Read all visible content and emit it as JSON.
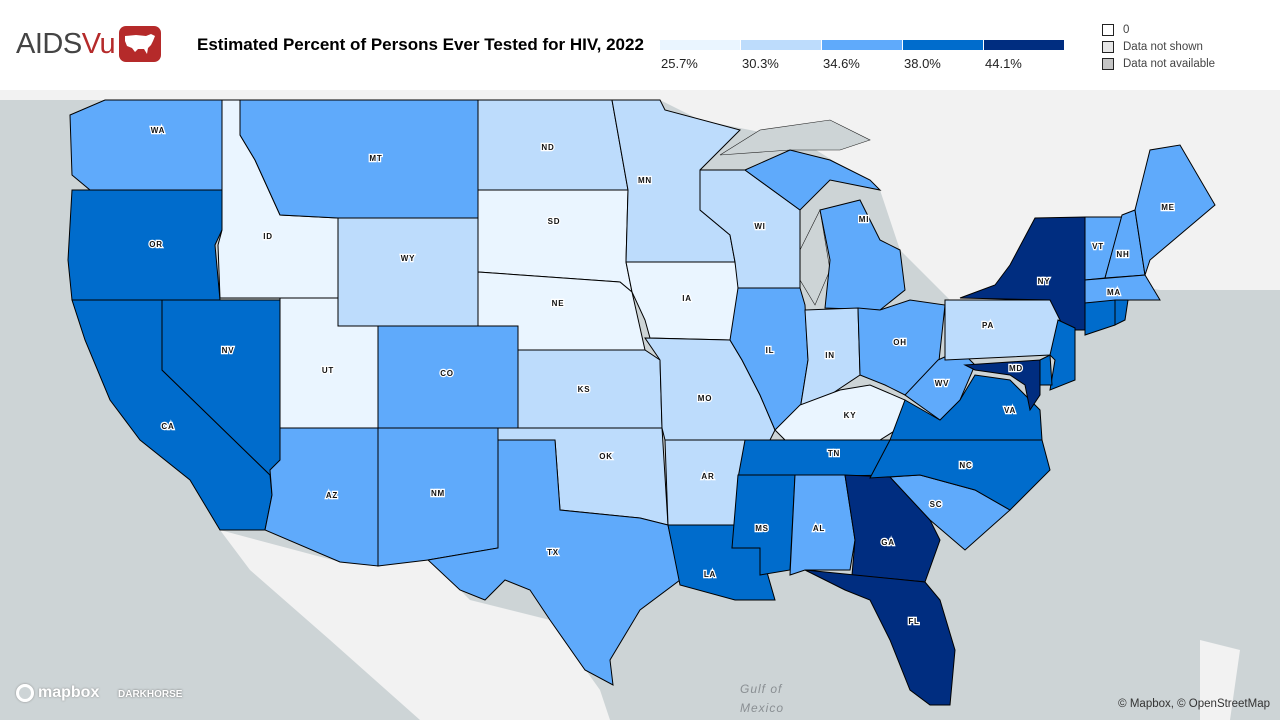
{
  "header": {
    "logo": {
      "text_main": "AIDS",
      "text_accent": "Vu"
    },
    "title": "Estimated Percent of Persons Ever Tested for HIV, 2022"
  },
  "legend": {
    "scale": [
      {
        "label": "25.7%",
        "color": "#eaf5ff"
      },
      {
        "label": "30.3%",
        "color": "#bddcfc"
      },
      {
        "label": "34.6%",
        "color": "#5faafb"
      },
      {
        "label": "38.0%",
        "color": "#006ccc"
      },
      {
        "label": "44.1%",
        "color": "#002d80"
      }
    ],
    "keys": [
      {
        "label": "0",
        "color": "#ffffff"
      },
      {
        "label": "Data not shown",
        "color": "#e6e6e6"
      },
      {
        "label": "Data not available",
        "color": "#c4c4c4"
      }
    ]
  },
  "map": {
    "states": [
      {
        "abbr": "WA",
        "bin": 2
      },
      {
        "abbr": "OR",
        "bin": 3
      },
      {
        "abbr": "CA",
        "bin": 3
      },
      {
        "abbr": "NV",
        "bin": 3
      },
      {
        "abbr": "ID",
        "bin": 0
      },
      {
        "abbr": "MT",
        "bin": 2
      },
      {
        "abbr": "WY",
        "bin": 1
      },
      {
        "abbr": "UT",
        "bin": 0
      },
      {
        "abbr": "CO",
        "bin": 2
      },
      {
        "abbr": "AZ",
        "bin": 2
      },
      {
        "abbr": "NM",
        "bin": 2
      },
      {
        "abbr": "ND",
        "bin": 1
      },
      {
        "abbr": "SD",
        "bin": 0
      },
      {
        "abbr": "NE",
        "bin": 0
      },
      {
        "abbr": "KS",
        "bin": 1
      },
      {
        "abbr": "OK",
        "bin": 1
      },
      {
        "abbr": "TX",
        "bin": 2
      },
      {
        "abbr": "MN",
        "bin": 1
      },
      {
        "abbr": "IA",
        "bin": 0
      },
      {
        "abbr": "MO",
        "bin": 1
      },
      {
        "abbr": "AR",
        "bin": 1
      },
      {
        "abbr": "LA",
        "bin": 3
      },
      {
        "abbr": "WI",
        "bin": 1
      },
      {
        "abbr": "IL",
        "bin": 2
      },
      {
        "abbr": "MI",
        "bin": 2
      },
      {
        "abbr": "IN",
        "bin": 1
      },
      {
        "abbr": "OH",
        "bin": 2
      },
      {
        "abbr": "KY",
        "bin": 0
      },
      {
        "abbr": "TN",
        "bin": 3
      },
      {
        "abbr": "MS",
        "bin": 3
      },
      {
        "abbr": "AL",
        "bin": 2
      },
      {
        "abbr": "GA",
        "bin": 4
      },
      {
        "abbr": "FL",
        "bin": 4
      },
      {
        "abbr": "SC",
        "bin": 2
      },
      {
        "abbr": "NC",
        "bin": 3
      },
      {
        "abbr": "VA",
        "bin": 3
      },
      {
        "abbr": "WV",
        "bin": 2
      },
      {
        "abbr": "PA",
        "bin": 1
      },
      {
        "abbr": "NY",
        "bin": 4
      },
      {
        "abbr": "VT",
        "bin": 2
      },
      {
        "abbr": "NH",
        "bin": 2
      },
      {
        "abbr": "ME",
        "bin": 2
      },
      {
        "abbr": "MA",
        "bin": 2
      },
      {
        "abbr": "CT",
        "bin": 3
      },
      {
        "abbr": "RI",
        "bin": 3
      },
      {
        "abbr": "NJ",
        "bin": 3
      },
      {
        "abbr": "DE",
        "bin": 3
      },
      {
        "abbr": "MD",
        "bin": 4
      }
    ],
    "water_label_line1": "Gulf of",
    "water_label_line2": "Mexico",
    "colors": {
      "water": "#cdd4d6",
      "land": "#f2f2f2"
    }
  },
  "footer": {
    "mapbox_logo": "mapbox",
    "darkhorse_logo": "DARKHORSE",
    "attribution": "© Mapbox, © OpenStreetMap"
  }
}
